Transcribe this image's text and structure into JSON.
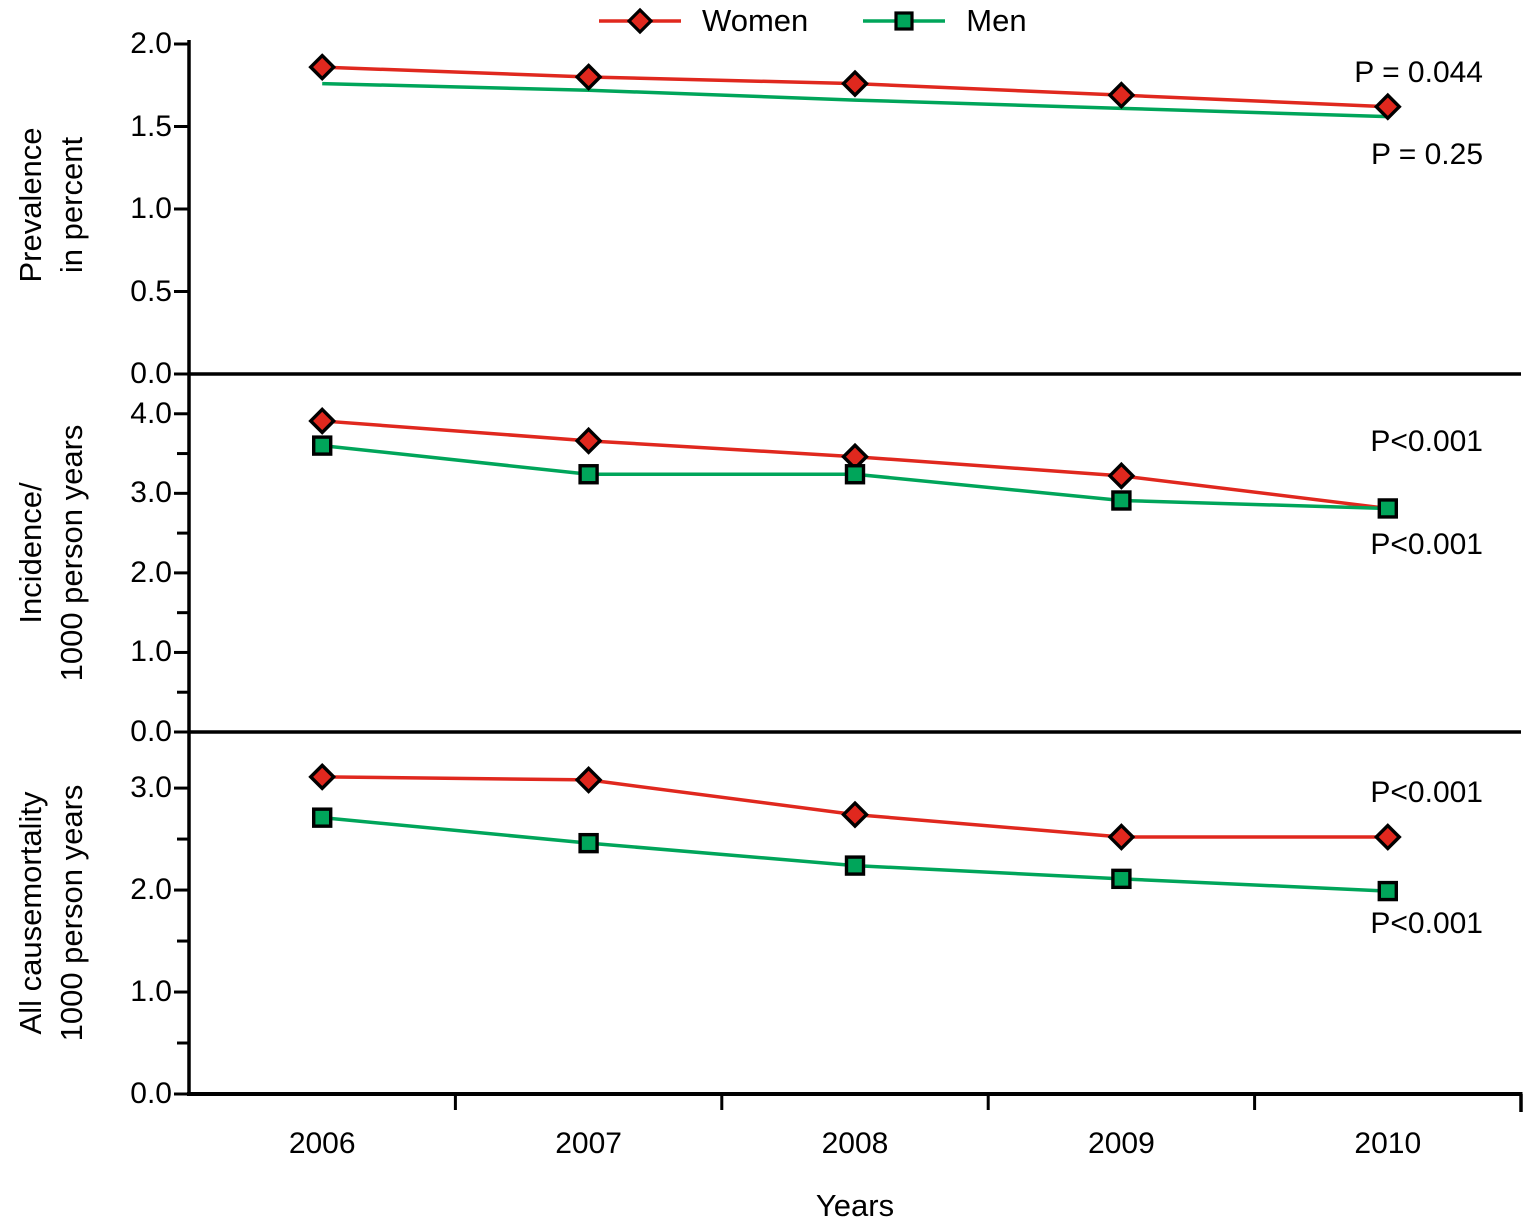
{
  "figure": {
    "legend": {
      "items": [
        {
          "label": "Women",
          "marker": "red-diamond"
        },
        {
          "label": "Men",
          "marker": "green-square"
        }
      ]
    },
    "colors": {
      "women": "#e0281e",
      "men": "#00a55a",
      "axis": "#000000"
    },
    "x_axis": {
      "label": "Years",
      "categories": [
        "2006",
        "2007",
        "2008",
        "2009",
        "2010"
      ]
    }
  },
  "chart_data": [
    {
      "type": "line",
      "panel": "prevalence",
      "ylabel_lines": [
        "Prevalence",
        "in percent"
      ],
      "ylim": [
        0,
        2.0
      ],
      "yticks": {
        "major": [
          2.0,
          1.5,
          1.0,
          0.5,
          0.0
        ],
        "labels": [
          "2.0",
          "1.5",
          "1.0",
          "0.5",
          "0.0"
        ],
        "minor": []
      },
      "categories": [
        "2006",
        "2007",
        "2008",
        "2009",
        "2010"
      ],
      "series": [
        {
          "name": "Women",
          "color_key": "women",
          "marker": "diamond",
          "values": [
            1.86,
            1.8,
            1.76,
            1.69,
            1.62
          ],
          "p_label": "P = 0.044",
          "hidden_marker_indices": []
        },
        {
          "name": "Men",
          "color_key": "men",
          "marker": "none",
          "values": [
            1.76,
            1.72,
            1.66,
            1.61,
            1.56
          ],
          "p_label": "P = 0.25",
          "hidden_marker_indices": []
        }
      ]
    },
    {
      "type": "line",
      "panel": "incidence",
      "ylabel_lines": [
        "Incidence/",
        "1000 person years"
      ],
      "ylim": [
        0,
        4.5
      ],
      "yticks": {
        "major": [
          4.0,
          3.0,
          2.0,
          1.0,
          0.0
        ],
        "labels": [
          "4.0",
          "3.0",
          "2.0",
          "1.0",
          "0.0"
        ],
        "minor": [
          3.5,
          2.5,
          1.5,
          0.5
        ]
      },
      "categories": [
        "2006",
        "2007",
        "2008",
        "2009",
        "2010"
      ],
      "series": [
        {
          "name": "Women",
          "color_key": "women",
          "marker": "diamond",
          "values": [
            3.91,
            3.66,
            3.46,
            3.22,
            2.81
          ],
          "p_label": "P<0.001",
          "hidden_marker_indices": [
            4
          ]
        },
        {
          "name": "Men",
          "color_key": "men",
          "marker": "square",
          "values": [
            3.6,
            3.24,
            3.24,
            2.91,
            2.81
          ],
          "p_label": "P<0.001",
          "hidden_marker_indices": []
        }
      ]
    },
    {
      "type": "line",
      "panel": "all-cause-mortality",
      "ylabel_lines": [
        "All causemortality",
        "1000 person years"
      ],
      "ylim": [
        0,
        3.55
      ],
      "yticks": {
        "major": [
          3.0,
          2.0,
          1.0,
          0.0
        ],
        "labels": [
          "3.0",
          "2.0",
          "1.0",
          "0.0"
        ],
        "minor": [
          2.5,
          1.5,
          0.5
        ]
      },
      "categories": [
        "2006",
        "2007",
        "2008",
        "2009",
        "2010"
      ],
      "series": [
        {
          "name": "Women",
          "color_key": "women",
          "marker": "diamond",
          "values": [
            3.11,
            3.08,
            2.74,
            2.52,
            2.52
          ],
          "p_label": "P<0.001",
          "hidden_marker_indices": []
        },
        {
          "name": "Men",
          "color_key": "men",
          "marker": "square",
          "values": [
            2.71,
            2.46,
            2.24,
            2.11,
            1.99
          ],
          "p_label": "P<0.001",
          "hidden_marker_indices": []
        }
      ]
    }
  ]
}
